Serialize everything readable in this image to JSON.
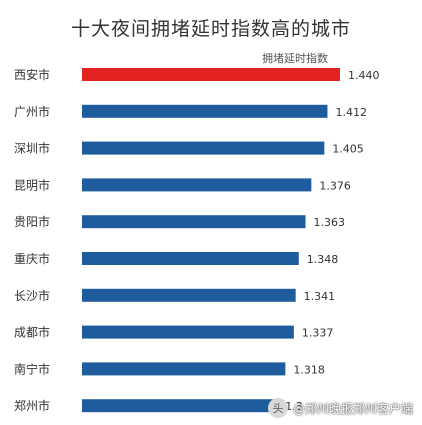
{
  "chart_data": {
    "type": "bar",
    "orientation": "horizontal",
    "title": "十大夜间拥堵延时指数高的城市",
    "categories": [
      "西安市",
      "广州市",
      "深圳市",
      "昆明市",
      "贵阳市",
      "重庆市",
      "长沙市",
      "成都市",
      "南宁市",
      "郑州市"
    ],
    "series": [
      {
        "name": "拥堵延时指数",
        "values": [
          1.44,
          1.412,
          1.405,
          1.376,
          1.363,
          1.348,
          1.341,
          1.337,
          1.318,
          1.3
        ]
      }
    ],
    "value_labels": [
      "1.440",
      "1.412",
      "1.405",
      "1.376",
      "1.363",
      "1.348",
      "1.341",
      "1.337",
      "1.318",
      "1.3"
    ],
    "highlight_index": 0,
    "colors": {
      "highlight": "#e32322",
      "bar": "#1f5c9e",
      "text": "#333333",
      "legend_text": "#555555"
    },
    "grid": false,
    "legend": "top-right"
  },
  "watermark": {
    "logo": "头",
    "text": "@郑州晚报郑州客户端"
  }
}
